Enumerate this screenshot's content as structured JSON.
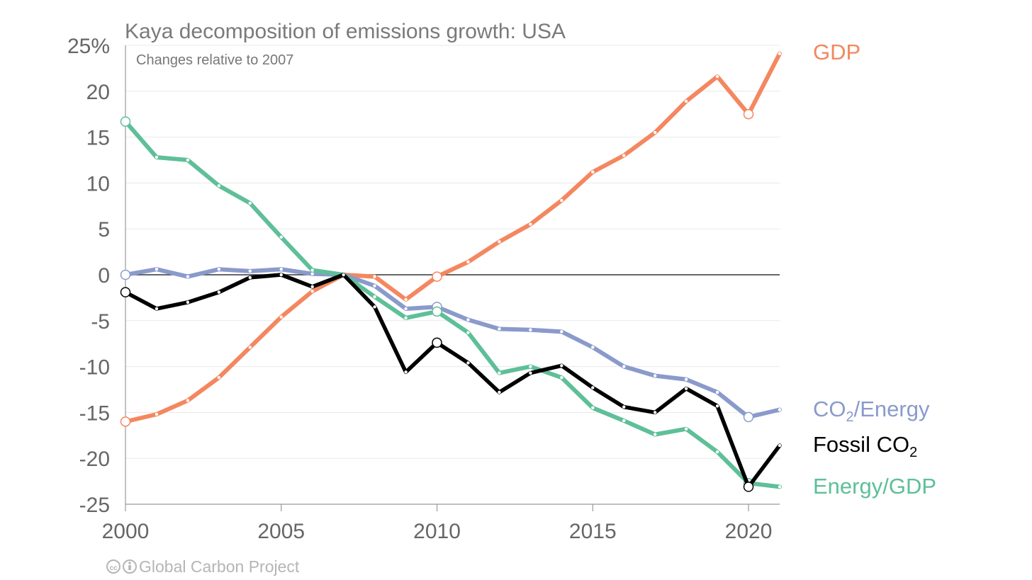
{
  "chart_data": {
    "type": "line",
    "title": "Kaya decomposition of emissions growth: USA",
    "subtitle": "Changes relative to 2007",
    "ylim": [
      -25,
      25
    ],
    "xlim": [
      2000,
      2021
    ],
    "y_tick_labels": [
      {
        "value": 25,
        "label": "25%"
      },
      {
        "value": 20,
        "label": "20"
      },
      {
        "value": 15,
        "label": "15"
      },
      {
        "value": 10,
        "label": "10"
      },
      {
        "value": 5,
        "label": "5"
      },
      {
        "value": 0,
        "label": "0"
      },
      {
        "value": -5,
        "label": "-5"
      },
      {
        "value": -10,
        "label": "-10"
      },
      {
        "value": -15,
        "label": "-15"
      },
      {
        "value": -20,
        "label": "-20"
      },
      {
        "value": -25,
        "label": "-25"
      }
    ],
    "x_tick_labels": [
      {
        "value": 2000,
        "label": "2000"
      },
      {
        "value": 2005,
        "label": "2005"
      },
      {
        "value": 2010,
        "label": "2010"
      },
      {
        "value": 2015,
        "label": "2015"
      },
      {
        "value": 2020,
        "label": "2020"
      }
    ],
    "grid": true,
    "legend": "right, labels next to line ends",
    "x": [
      2000,
      2001,
      2002,
      2003,
      2004,
      2005,
      2006,
      2007,
      2008,
      2009,
      2010,
      2011,
      2012,
      2013,
      2014,
      2015,
      2016,
      2017,
      2018,
      2019,
      2020,
      2021
    ],
    "series": [
      {
        "name": "GDP",
        "key": "gdp",
        "color": "#f4875f",
        "values": [
          -16.0,
          -15.2,
          -13.7,
          -11.2,
          -7.9,
          -4.6,
          -1.8,
          0.0,
          -0.2,
          -2.7,
          -0.2,
          1.4,
          3.6,
          5.5,
          8.1,
          11.2,
          13.0,
          15.5,
          18.9,
          21.6,
          17.5,
          24.1
        ],
        "open_markers": [
          2000,
          2010,
          2020
        ]
      },
      {
        "name": "CO₂/Energy",
        "key": "co2energy",
        "color": "#8a9acb",
        "values": [
          0.0,
          0.6,
          -0.2,
          0.6,
          0.4,
          0.6,
          0.1,
          0.0,
          -1.2,
          -3.7,
          -3.5,
          -4.9,
          -5.9,
          -6.0,
          -6.2,
          -7.9,
          -10.0,
          -11.0,
          -11.4,
          -12.8,
          -15.5,
          -14.7
        ],
        "open_markers": [
          2000,
          2010,
          2020
        ]
      },
      {
        "name": "Fossil CO₂",
        "key": "fossil",
        "color": "#000000",
        "values": [
          -1.9,
          -3.7,
          -3.0,
          -1.9,
          -0.3,
          0.0,
          -1.3,
          0.0,
          -3.5,
          -10.6,
          -7.4,
          -9.6,
          -12.8,
          -10.7,
          -9.9,
          -12.3,
          -14.4,
          -15.0,
          -12.4,
          -14.3,
          -23.1,
          -18.6
        ],
        "open_markers": [
          2000,
          2010,
          2020
        ]
      },
      {
        "name": "Energy/GDP",
        "key": "energygdp",
        "color": "#5ebf98",
        "values": [
          16.7,
          12.8,
          12.5,
          9.7,
          7.8,
          4.1,
          0.5,
          0.0,
          -2.4,
          -4.7,
          -4.0,
          -6.3,
          -10.7,
          -10.0,
          -11.2,
          -14.5,
          -15.9,
          -17.4,
          -16.8,
          -19.3,
          -22.7,
          -23.1
        ],
        "open_markers": [
          2000,
          2010,
          2020
        ]
      }
    ]
  },
  "legend_labels": {
    "gdp": "GDP",
    "co2energy_base": "CO",
    "co2energy_sub": "2",
    "co2energy_rest": "/Energy",
    "fossil_base": "Fossil CO",
    "fossil_sub": "2",
    "energygdp": "Energy/GDP"
  },
  "credit": {
    "icon": "creative-commons-icon",
    "text": "Global Carbon Project"
  }
}
